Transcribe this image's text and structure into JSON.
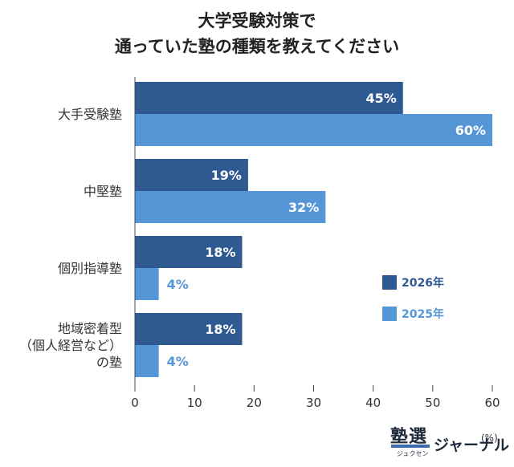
{
  "title_line1": "大学受験対策で",
  "title_line2": "通っていた塾の種類を教えてください",
  "unit_label": "(%)",
  "logo": {
    "kanji": "塾選",
    "ruby": "ジュクセン",
    "suffix": "ジャーナル"
  },
  "colors": {
    "2026": "#2f5a91",
    "2025": "#5596d6",
    "value_2026": "#2f5a91",
    "value_2025_outside": "#5596d6",
    "value_inside": "#ffffff"
  },
  "chart_data": {
    "type": "bar",
    "orientation": "horizontal",
    "title": "大学受験対策で 通っていた塾の種類を教えてください",
    "categories": [
      [
        "大手受験塾"
      ],
      [
        "中堅塾"
      ],
      [
        "個別指導塾"
      ],
      [
        "地域密着型",
        "（個人経営など）",
        "の塾"
      ]
    ],
    "series": [
      {
        "name": "2026年",
        "values": [
          45,
          19,
          18,
          18
        ],
        "labels": [
          "45%",
          "19%",
          "18%",
          "18%"
        ]
      },
      {
        "name": "2025年",
        "values": [
          60,
          32,
          4,
          4
        ],
        "labels": [
          "60%",
          "32%",
          "4%",
          "4%"
        ]
      }
    ],
    "xlim": [
      0,
      60
    ],
    "xticks": [
      "0",
      "10",
      "20",
      "30",
      "40",
      "50",
      "60"
    ],
    "xlabel": "",
    "ylabel": "",
    "unit": "(%)",
    "grid": false,
    "legend_position": "right"
  }
}
